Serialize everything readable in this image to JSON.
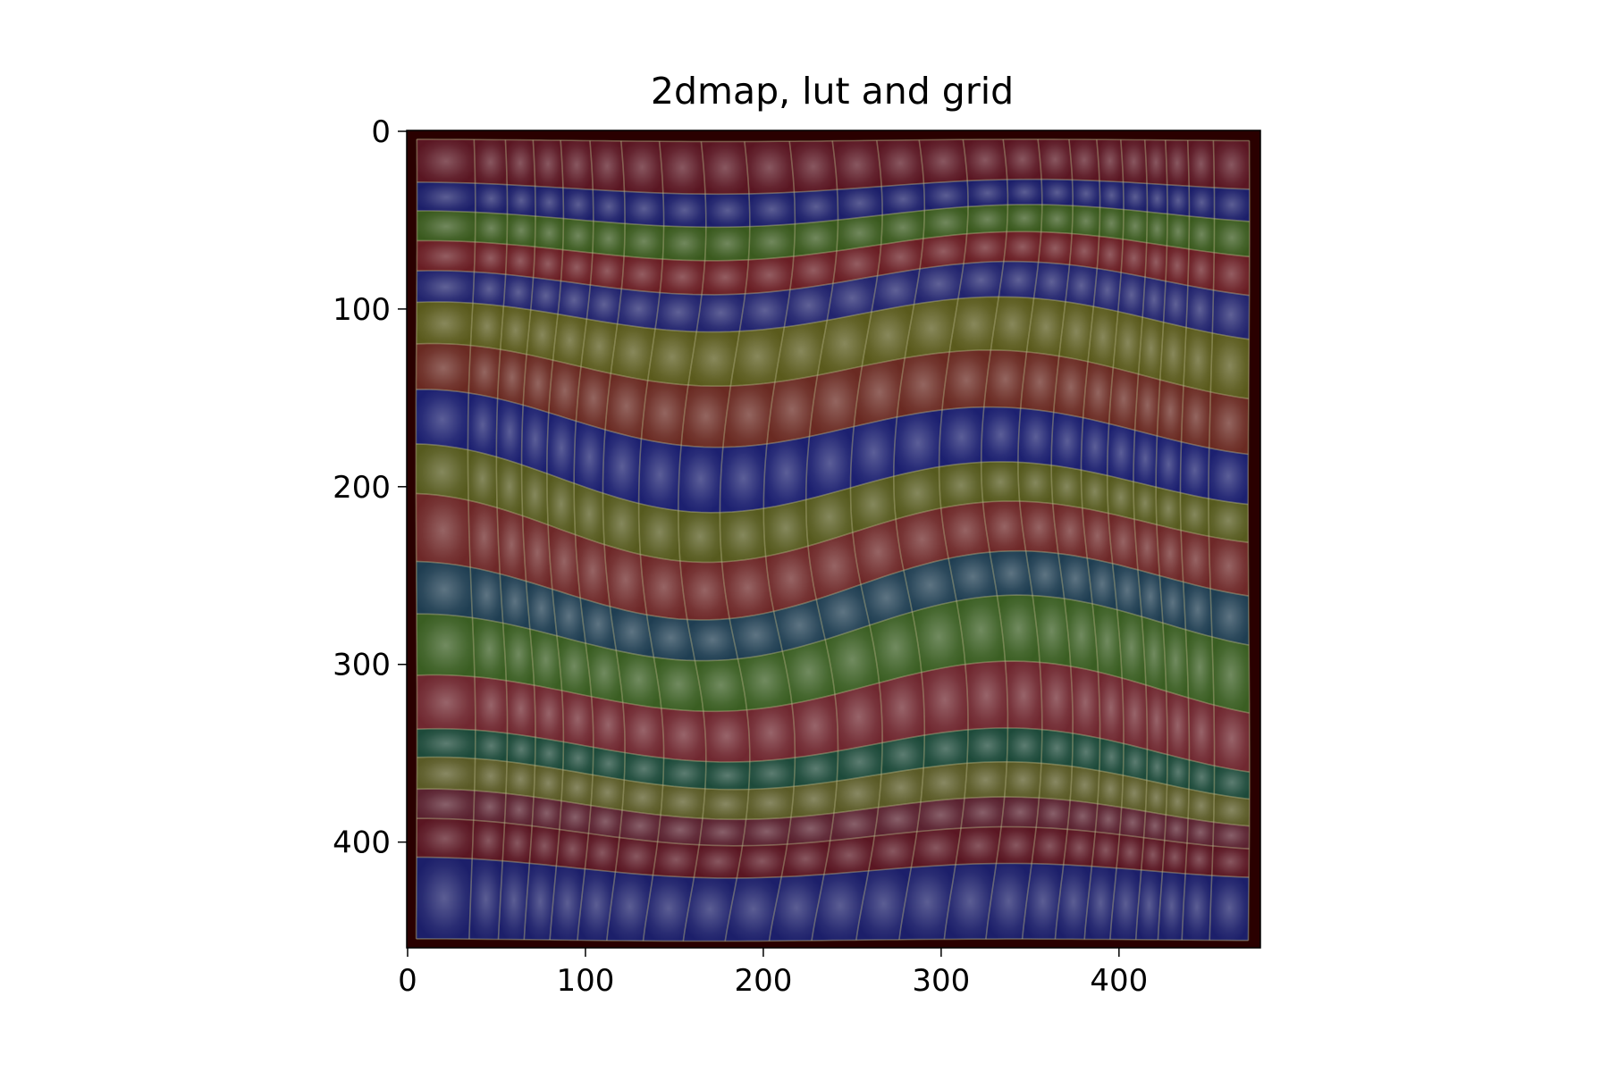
{
  "chart_data": {
    "type": "heatmap",
    "title": "2dmap, lut and grid",
    "xlabel": "",
    "ylabel": "",
    "x_ticks": [
      0,
      100,
      200,
      300,
      400
    ],
    "y_ticks": [
      0,
      100,
      200,
      300,
      400
    ],
    "x_tick_labels": [
      "0",
      "100",
      "200",
      "300",
      "400"
    ],
    "y_tick_labels": [
      "0",
      "100",
      "200",
      "300",
      "400"
    ],
    "xlim": [
      -0.5,
      479.5
    ],
    "ylim": [
      459.5,
      -0.5
    ],
    "y_axis_inverted": true,
    "grid": false,
    "background_color": "#2a0000",
    "grid_line_color": "#b9b98a",
    "band_colors": [
      "#5a1622",
      "#1c1f6a",
      "#3a5a1e",
      "#6a1e24",
      "#22246e",
      "#5a5a1c",
      "#6a2a22",
      "#1c2070",
      "#565a1e",
      "#6e2828",
      "#1f3e52",
      "#3a5e22",
      "#702830",
      "#1d4a3a",
      "#5a5a26",
      "#5a2230"
    ],
    "row_boundaries": [
      5,
      31,
      48,
      66,
      85,
      106,
      135,
      165,
      196,
      221,
      254,
      281,
      316,
      348,
      364,
      381,
      396,
      415,
      455
    ],
    "col_boundaries": [
      5,
      36,
      53,
      68,
      83,
      99,
      116,
      137,
      160,
      184,
      209,
      233,
      258,
      282,
      307,
      330,
      350,
      368,
      384,
      398,
      412,
      424,
      437,
      452,
      473
    ]
  }
}
